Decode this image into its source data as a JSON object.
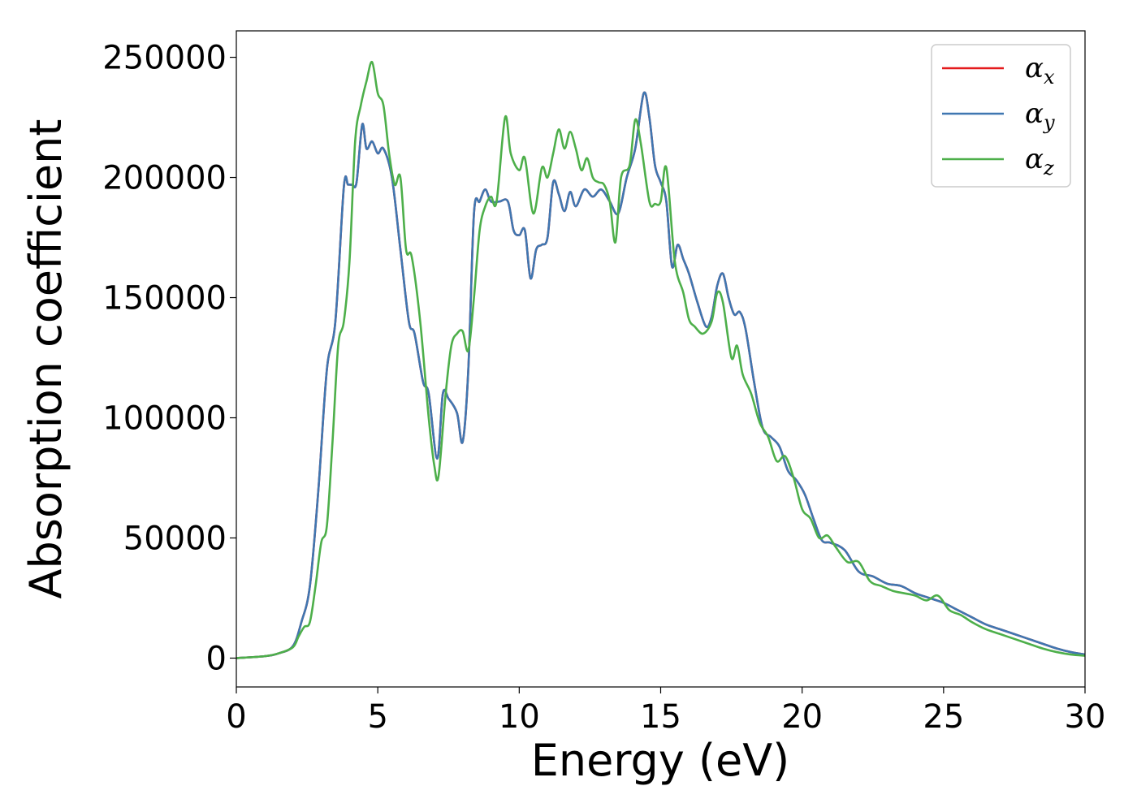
{
  "chart_data": {
    "type": "line",
    "title": "",
    "xlabel": "Energy (eV)",
    "ylabel": "Absorption coefficient",
    "xlim": [
      0,
      30
    ],
    "ylim": [
      -12000,
      261000
    ],
    "x_ticks": [
      0,
      5,
      10,
      15,
      20,
      25,
      30
    ],
    "y_ticks": [
      0,
      50000,
      100000,
      150000,
      200000,
      250000
    ],
    "grid": false,
    "legend_position": "top-right",
    "series": [
      {
        "name": "α",
        "subscript": "x",
        "color": "#e41a1c",
        "x": [
          0,
          1,
          1.5,
          2.0,
          2.3,
          2.6,
          2.9,
          3.2,
          3.5,
          3.8,
          3.95,
          4.1,
          4.25,
          4.45,
          4.6,
          4.8,
          5.0,
          5.2,
          5.5,
          5.8,
          6.1,
          6.3,
          6.6,
          6.8,
          7.1,
          7.3,
          7.5,
          7.8,
          8.0,
          8.2,
          8.4,
          8.6,
          8.8,
          9.0,
          9.3,
          9.6,
          9.8,
          10.0,
          10.2,
          10.4,
          10.6,
          10.8,
          11.0,
          11.2,
          11.4,
          11.6,
          11.8,
          12.0,
          12.3,
          12.6,
          12.9,
          13.2,
          13.5,
          13.8,
          14.1,
          14.4,
          14.6,
          14.8,
          15.0,
          15.2,
          15.4,
          15.6,
          15.8,
          16.0,
          16.3,
          16.6,
          16.8,
          17.0,
          17.2,
          17.4,
          17.6,
          17.8,
          18.0,
          18.3,
          18.6,
          18.9,
          19.2,
          19.5,
          19.8,
          20.1,
          20.4,
          20.7,
          21.0,
          21.5,
          22.0,
          22.5,
          23.0,
          23.5,
          24.0,
          24.5,
          25.0,
          25.5,
          26.0,
          26.5,
          27.0,
          27.5,
          28.0,
          28.5,
          29.0,
          29.5,
          30.0
        ],
        "y": [
          0,
          800,
          2000,
          5000,
          15000,
          30000,
          70000,
          120000,
          140000,
          196000,
          197000,
          197000,
          198000,
          222000,
          212000,
          215000,
          210000,
          212000,
          200000,
          170000,
          140000,
          135000,
          115000,
          110000,
          83000,
          110000,
          108000,
          102000,
          90000,
          120000,
          185000,
          190000,
          195000,
          190000,
          190000,
          190000,
          178000,
          176000,
          178000,
          158000,
          170000,
          172000,
          175000,
          198000,
          193000,
          186000,
          194000,
          188000,
          195000,
          192000,
          195000,
          190000,
          185000,
          200000,
          212000,
          235000,
          225000,
          205000,
          198000,
          190000,
          163000,
          172000,
          166000,
          160000,
          148000,
          138000,
          142000,
          155000,
          160000,
          150000,
          143000,
          144000,
          137000,
          115000,
          96000,
          92000,
          88000,
          78000,
          74000,
          68000,
          58000,
          49000,
          48000,
          45000,
          36000,
          34000,
          31000,
          30000,
          27000,
          25000,
          23000,
          20000,
          17000,
          14000,
          12000,
          10000,
          8000,
          6000,
          4000,
          2500,
          1500
        ]
      },
      {
        "name": "α",
        "subscript": "y",
        "color": "#3f77b1",
        "x": [
          0,
          1,
          1.5,
          2.0,
          2.3,
          2.6,
          2.9,
          3.2,
          3.5,
          3.8,
          3.95,
          4.1,
          4.25,
          4.45,
          4.6,
          4.8,
          5.0,
          5.2,
          5.5,
          5.8,
          6.1,
          6.3,
          6.6,
          6.8,
          7.1,
          7.3,
          7.5,
          7.8,
          8.0,
          8.2,
          8.4,
          8.6,
          8.8,
          9.0,
          9.3,
          9.6,
          9.8,
          10.0,
          10.2,
          10.4,
          10.6,
          10.8,
          11.0,
          11.2,
          11.4,
          11.6,
          11.8,
          12.0,
          12.3,
          12.6,
          12.9,
          13.2,
          13.5,
          13.8,
          14.1,
          14.4,
          14.6,
          14.8,
          15.0,
          15.2,
          15.4,
          15.6,
          15.8,
          16.0,
          16.3,
          16.6,
          16.8,
          17.0,
          17.2,
          17.4,
          17.6,
          17.8,
          18.0,
          18.3,
          18.6,
          18.9,
          19.2,
          19.5,
          19.8,
          20.1,
          20.4,
          20.7,
          21.0,
          21.5,
          22.0,
          22.5,
          23.0,
          23.5,
          24.0,
          24.5,
          25.0,
          25.5,
          26.0,
          26.5,
          27.0,
          27.5,
          28.0,
          28.5,
          29.0,
          29.5,
          30.0
        ],
        "y": [
          0,
          800,
          2000,
          5000,
          15000,
          30000,
          70000,
          120000,
          140000,
          196000,
          197000,
          197000,
          198000,
          222000,
          212000,
          215000,
          210000,
          212000,
          200000,
          170000,
          140000,
          135000,
          115000,
          110000,
          83000,
          110000,
          108000,
          102000,
          90000,
          120000,
          185000,
          190000,
          195000,
          190000,
          190000,
          190000,
          178000,
          176000,
          178000,
          158000,
          170000,
          172000,
          175000,
          198000,
          193000,
          186000,
          194000,
          188000,
          195000,
          192000,
          195000,
          190000,
          185000,
          200000,
          212000,
          235000,
          225000,
          205000,
          198000,
          190000,
          163000,
          172000,
          166000,
          160000,
          148000,
          138000,
          142000,
          155000,
          160000,
          150000,
          143000,
          144000,
          137000,
          115000,
          96000,
          92000,
          88000,
          78000,
          74000,
          68000,
          58000,
          49000,
          48000,
          45000,
          36000,
          34000,
          31000,
          30000,
          27000,
          25000,
          23000,
          20000,
          17000,
          14000,
          12000,
          10000,
          8000,
          6000,
          4000,
          2500,
          1500
        ]
      },
      {
        "name": "α",
        "subscript": "z",
        "color": "#4daf4a",
        "x": [
          0,
          1,
          1.5,
          2.0,
          2.2,
          2.4,
          2.6,
          2.8,
          3.0,
          3.2,
          3.4,
          3.6,
          3.8,
          4.0,
          4.2,
          4.4,
          4.6,
          4.8,
          5.0,
          5.2,
          5.4,
          5.6,
          5.8,
          6.0,
          6.2,
          6.5,
          6.8,
          7.0,
          7.15,
          7.4,
          7.6,
          7.8,
          8.0,
          8.2,
          8.4,
          8.6,
          8.8,
          9.0,
          9.2,
          9.5,
          9.7,
          10.0,
          10.2,
          10.5,
          10.8,
          11.0,
          11.2,
          11.4,
          11.6,
          11.8,
          12.0,
          12.2,
          12.4,
          12.6,
          12.8,
          13.0,
          13.2,
          13.4,
          13.6,
          13.9,
          14.1,
          14.3,
          14.6,
          14.8,
          15.0,
          15.2,
          15.5,
          15.8,
          16.0,
          16.2,
          16.5,
          16.8,
          17.0,
          17.2,
          17.5,
          17.7,
          17.9,
          18.2,
          18.5,
          18.8,
          19.1,
          19.4,
          19.7,
          20.0,
          20.3,
          20.6,
          20.9,
          21.2,
          21.6,
          22.0,
          22.4,
          22.8,
          23.2,
          23.6,
          24.0,
          24.4,
          24.8,
          25.2,
          25.6,
          26.0,
          26.5,
          27.0,
          27.5,
          28.0,
          28.5,
          29.0,
          29.5,
          30.0
        ],
        "y": [
          0,
          800,
          2000,
          4500,
          9000,
          13000,
          15000,
          30000,
          48000,
          55000,
          90000,
          130000,
          140000,
          165000,
          215000,
          230000,
          240000,
          248000,
          235000,
          230000,
          210000,
          197000,
          200000,
          170000,
          167000,
          140000,
          100000,
          80000,
          76000,
          110000,
          130000,
          135000,
          136000,
          128000,
          150000,
          178000,
          188000,
          192000,
          190000,
          225000,
          210000,
          203000,
          208000,
          185000,
          204000,
          200000,
          210000,
          220000,
          212000,
          219000,
          212000,
          203000,
          208000,
          200000,
          198000,
          197000,
          190000,
          173000,
          200000,
          205000,
          224000,
          214000,
          190000,
          189000,
          190000,
          204000,
          165000,
          152000,
          141000,
          138000,
          135000,
          140000,
          152000,
          148000,
          125000,
          130000,
          118000,
          110000,
          98000,
          92000,
          82000,
          84000,
          75000,
          62000,
          58000,
          50000,
          51000,
          46000,
          40000,
          40000,
          32000,
          30000,
          28000,
          27000,
          26000,
          24000,
          26000,
          20000,
          18000,
          15000,
          12000,
          10000,
          8000,
          6000,
          4000,
          2500,
          1500,
          1000
        ]
      }
    ]
  }
}
